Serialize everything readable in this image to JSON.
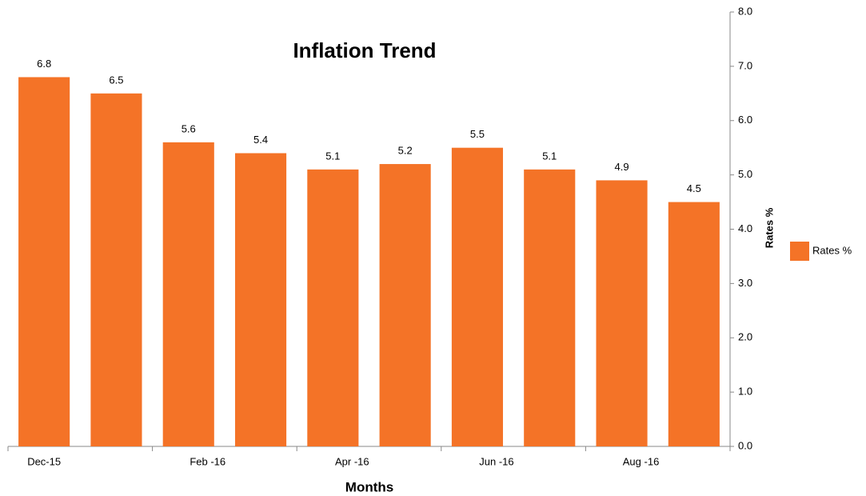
{
  "chart_data": {
    "type": "bar",
    "title": "Inflation Trend",
    "x_label": "Months",
    "y_label": "Rates %",
    "categories": [
      "Dec-15",
      null,
      "Feb -16",
      null,
      "Apr -16",
      null,
      "Jun -16",
      null,
      "Aug -16",
      null
    ],
    "series": [
      {
        "name": "Rates %",
        "color": "#f47327",
        "values": [
          6.8,
          6.5,
          5.6,
          5.4,
          5.1,
          5.2,
          5.5,
          5.1,
          4.9,
          4.5
        ]
      }
    ],
    "ylim": [
      0,
      8
    ],
    "yticks": [
      {
        "value": 0,
        "label": "0.0"
      },
      {
        "value": 1,
        "label": "1.0"
      },
      {
        "value": 2,
        "label": "2.0"
      },
      {
        "value": 3,
        "label": "3.0"
      },
      {
        "value": 4,
        "label": "4.0"
      },
      {
        "value": 5,
        "label": "5.0"
      },
      {
        "value": 6,
        "label": "6.0"
      },
      {
        "value": 7,
        "label": "7.0"
      },
      {
        "value": 8,
        "label": "8.0"
      }
    ],
    "y_axis_side": "right",
    "grid": false,
    "legend": "right"
  }
}
